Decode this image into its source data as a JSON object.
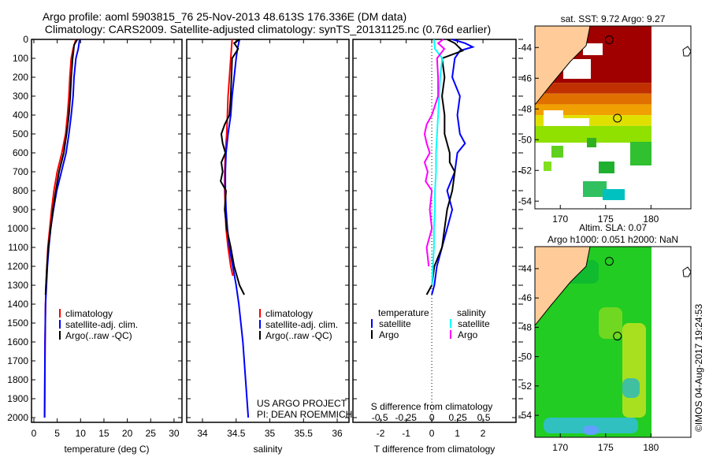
{
  "title_line1": "Argo profile: aoml 5903815_76 25-Nov-2013 48.613S 176.336E (DM data)",
  "title_line2": "Climatology: CARS2009. Satellite-adjusted climatology: synTS_20131125.nc (0.76d earlier)",
  "credit": "US ARGO PROJECT",
  "pi": "PI: DEAN ROEMMICH",
  "copyright": "©IMOS 04-Aug-2017 19:24:53",
  "colors": {
    "climatology": "#ff0000",
    "satellite": "#0000ff",
    "argo": "#000000",
    "sal_satellite": "#00ffff",
    "sal_argo": "#ff00ff",
    "land": "#ffcc99"
  },
  "chart_data": [
    {
      "type": "line",
      "name": "temperature",
      "xlabel": "temperature (deg C)",
      "ylabel": "",
      "xlim": [
        -0.5,
        31.7
      ],
      "ylim": [
        0,
        2025
      ],
      "xticks": [
        0,
        5,
        10,
        15,
        20,
        25,
        30
      ],
      "yticks": [
        0,
        100,
        200,
        300,
        400,
        500,
        600,
        700,
        800,
        900,
        1000,
        1100,
        1200,
        1300,
        1400,
        1500,
        1600,
        1700,
        1800,
        1900,
        2000
      ],
      "legend": [
        "climatology",
        "satellite-adj. clim.",
        "Argo(..raw -QC)"
      ],
      "series": [
        {
          "name": "climatology",
          "color": "#ff0000",
          "depth": [
            0,
            50,
            100,
            200,
            300,
            400,
            500,
            600,
            700,
            800,
            900,
            1000,
            1100,
            1200,
            1300,
            1400,
            1600,
            1800,
            2000
          ],
          "values": [
            9.0,
            8.4,
            8.0,
            7.7,
            7.5,
            7.2,
            6.8,
            6.0,
            5.0,
            4.3,
            3.8,
            3.4,
            3.0,
            2.8,
            2.6,
            2.5,
            2.4,
            2.35,
            2.3
          ]
        },
        {
          "name": "satellite-adj. clim.",
          "color": "#0000ff",
          "depth": [
            0,
            50,
            100,
            200,
            300,
            400,
            500,
            600,
            700,
            800,
            900,
            1000,
            1100,
            1200,
            1300,
            1400,
            1600,
            1800,
            2000
          ],
          "values": [
            9.8,
            9.5,
            9.0,
            8.6,
            8.4,
            8.0,
            7.5,
            6.9,
            5.9,
            4.9,
            4.2,
            3.6,
            3.2,
            2.9,
            2.7,
            2.5,
            2.4,
            2.35,
            2.3
          ]
        },
        {
          "name": "Argo(..raw -QC)",
          "color": "#000000",
          "depth": [
            0,
            30,
            60,
            100,
            200,
            300,
            400,
            500,
            600,
            650,
            700,
            800,
            900,
            1000,
            1100,
            1200,
            1300,
            1350
          ],
          "values": [
            9.3,
            8.6,
            8.5,
            8.3,
            8.0,
            7.8,
            7.5,
            7.0,
            6.4,
            5.9,
            5.4,
            4.7,
            4.1,
            3.6,
            3.1,
            2.8,
            2.6,
            2.5
          ]
        }
      ]
    },
    {
      "type": "line",
      "name": "salinity",
      "xlabel": "salinity",
      "xlim": [
        33.766,
        36.175
      ],
      "ylim": [
        0,
        2025
      ],
      "xticks": [
        34,
        34.5,
        35,
        35.5,
        36
      ],
      "legend": [
        "climatology",
        "satellite-adj. clim.",
        "Argo(..raw -QC)"
      ],
      "series": [
        {
          "name": "climatology",
          "color": "#ff0000",
          "depth": [
            0,
            100,
            200,
            300,
            400,
            500,
            600,
            700,
            800,
            900,
            1000,
            1100,
            1200,
            1250
          ],
          "values": [
            34.44,
            34.42,
            34.4,
            34.38,
            34.37,
            34.36,
            34.34,
            34.33,
            34.33,
            34.34,
            34.35,
            34.38,
            34.42,
            34.45
          ]
        },
        {
          "name": "satellite-adj. clim.",
          "color": "#0000ff",
          "depth": [
            0,
            50,
            100,
            200,
            300,
            400,
            500,
            600,
            700,
            800,
            900,
            1000,
            1100,
            1200,
            1300,
            1400,
            1500,
            1600,
            1700,
            1800,
            1900,
            2000
          ],
          "values": [
            34.55,
            34.52,
            34.5,
            34.47,
            34.44,
            34.42,
            34.38,
            34.35,
            34.34,
            34.34,
            34.35,
            34.37,
            34.4,
            34.45,
            34.5,
            34.54,
            34.57,
            34.6,
            34.62,
            34.64,
            34.66,
            34.68
          ]
        },
        {
          "name": "Argo(..raw -QC)",
          "color": "#000000",
          "depth": [
            0,
            20,
            50,
            100,
            200,
            300,
            400,
            450,
            500,
            550,
            600,
            650,
            700,
            750,
            800,
            900,
            1000,
            1100,
            1200,
            1300,
            1350
          ],
          "values": [
            34.55,
            34.47,
            34.53,
            34.44,
            34.43,
            34.42,
            34.4,
            34.33,
            34.28,
            34.3,
            34.34,
            34.28,
            34.3,
            34.27,
            34.35,
            34.33,
            34.36,
            34.42,
            34.47,
            34.55,
            34.62
          ]
        }
      ]
    },
    {
      "type": "line",
      "name": "difference",
      "xlabel": "T difference from climatology",
      "x2label": "S difference from climatology",
      "xlim": [
        -3.08,
        3.29
      ],
      "x2lim": [
        -0.76,
        0.81
      ],
      "ylim": [
        0,
        2025
      ],
      "xticks": [
        -2,
        -1,
        0,
        1,
        2
      ],
      "x2ticks": [
        "-0.5",
        "-0.25",
        "0",
        "0.25",
        "0.5"
      ],
      "legend_temperature": {
        "title": "temperature",
        "items": [
          "satellite",
          "Argo"
        ]
      },
      "legend_salinity": {
        "title": "salinity",
        "items": [
          "satellite",
          "Argo"
        ]
      },
      "series": [
        {
          "name": "T satellite",
          "axis": "T",
          "color": "#0000ff",
          "depth": [
            0,
            20,
            40,
            60,
            100,
            200,
            300,
            400,
            500,
            550,
            600,
            700,
            800,
            900,
            1000,
            1100,
            1200,
            1300,
            1350
          ],
          "values": [
            0.8,
            1.3,
            1.6,
            1.1,
            0.9,
            0.8,
            1.1,
            1.0,
            1.1,
            1.3,
            1.0,
            0.9,
            0.6,
            0.8,
            0.6,
            0.4,
            0.2,
            0.1,
            0.0
          ]
        },
        {
          "name": "T Argo",
          "axis": "T",
          "color": "#000000",
          "depth": [
            0,
            20,
            60,
            100,
            200,
            300,
            400,
            500,
            600,
            650,
            700,
            800,
            900,
            1000,
            1100,
            1200,
            1300,
            1350
          ],
          "values": [
            0.6,
            0.9,
            1.2,
            0.4,
            0.5,
            0.4,
            0.5,
            0.5,
            0.7,
            0.7,
            0.9,
            0.8,
            0.6,
            0.5,
            0.4,
            0.1,
            0.0,
            -0.2
          ]
        },
        {
          "name": "S satellite",
          "axis": "S",
          "color": "#00ffff",
          "depth": [
            0,
            50,
            100,
            200,
            300,
            400,
            500,
            600,
            700,
            800,
            900,
            1000,
            1100,
            1200,
            1300
          ],
          "values": [
            0.02,
            0.03,
            0.1,
            0.08,
            0.07,
            0.06,
            0.05,
            0.04,
            0.04,
            0.03,
            0.03,
            0.02,
            0.02,
            0.01,
            0.0
          ]
        },
        {
          "name": "S Argo",
          "axis": "S",
          "color": "#ff00ff",
          "depth": [
            0,
            20,
            50,
            100,
            200,
            300,
            400,
            450,
            500,
            550,
            600,
            650,
            700,
            750,
            800,
            900,
            1000,
            1100,
            1200
          ],
          "values": [
            0.11,
            0.06,
            0.12,
            0.05,
            0.06,
            0.06,
            0.0,
            -0.05,
            -0.07,
            -0.05,
            -0.02,
            -0.07,
            -0.04,
            -0.06,
            0.0,
            -0.02,
            0.0,
            -0.05,
            -0.03
          ]
        }
      ]
    }
  ],
  "map_sst": {
    "title": "sat. SST: 9.72 Argo: 9.27",
    "xticks": [
      170,
      175,
      180
    ],
    "yticks": [
      -44,
      -46,
      -48,
      -50,
      -52,
      -54
    ],
    "lonlim": [
      167.2,
      184.4
    ],
    "latlim": [
      -54.5,
      -42.6
    ],
    "markers": [
      {
        "lon": 175.4,
        "lat": -43.5
      },
      {
        "lon": 176.3,
        "lat": -48.6
      }
    ]
  },
  "map_sla": {
    "title1": "Altim. SLA: 0.07",
    "title2": "Argo h1000: 0.051 h2000: NaN",
    "xticks": [
      170,
      175,
      180
    ],
    "yticks": [
      -44,
      -46,
      -48,
      -50,
      -52,
      -54
    ],
    "lonlim": [
      167.2,
      184.4
    ],
    "latlim": [
      -55.5,
      -42.5
    ],
    "markers": [
      {
        "lon": 175.4,
        "lat": -43.5
      },
      {
        "lon": 176.3,
        "lat": -48.6
      }
    ]
  }
}
